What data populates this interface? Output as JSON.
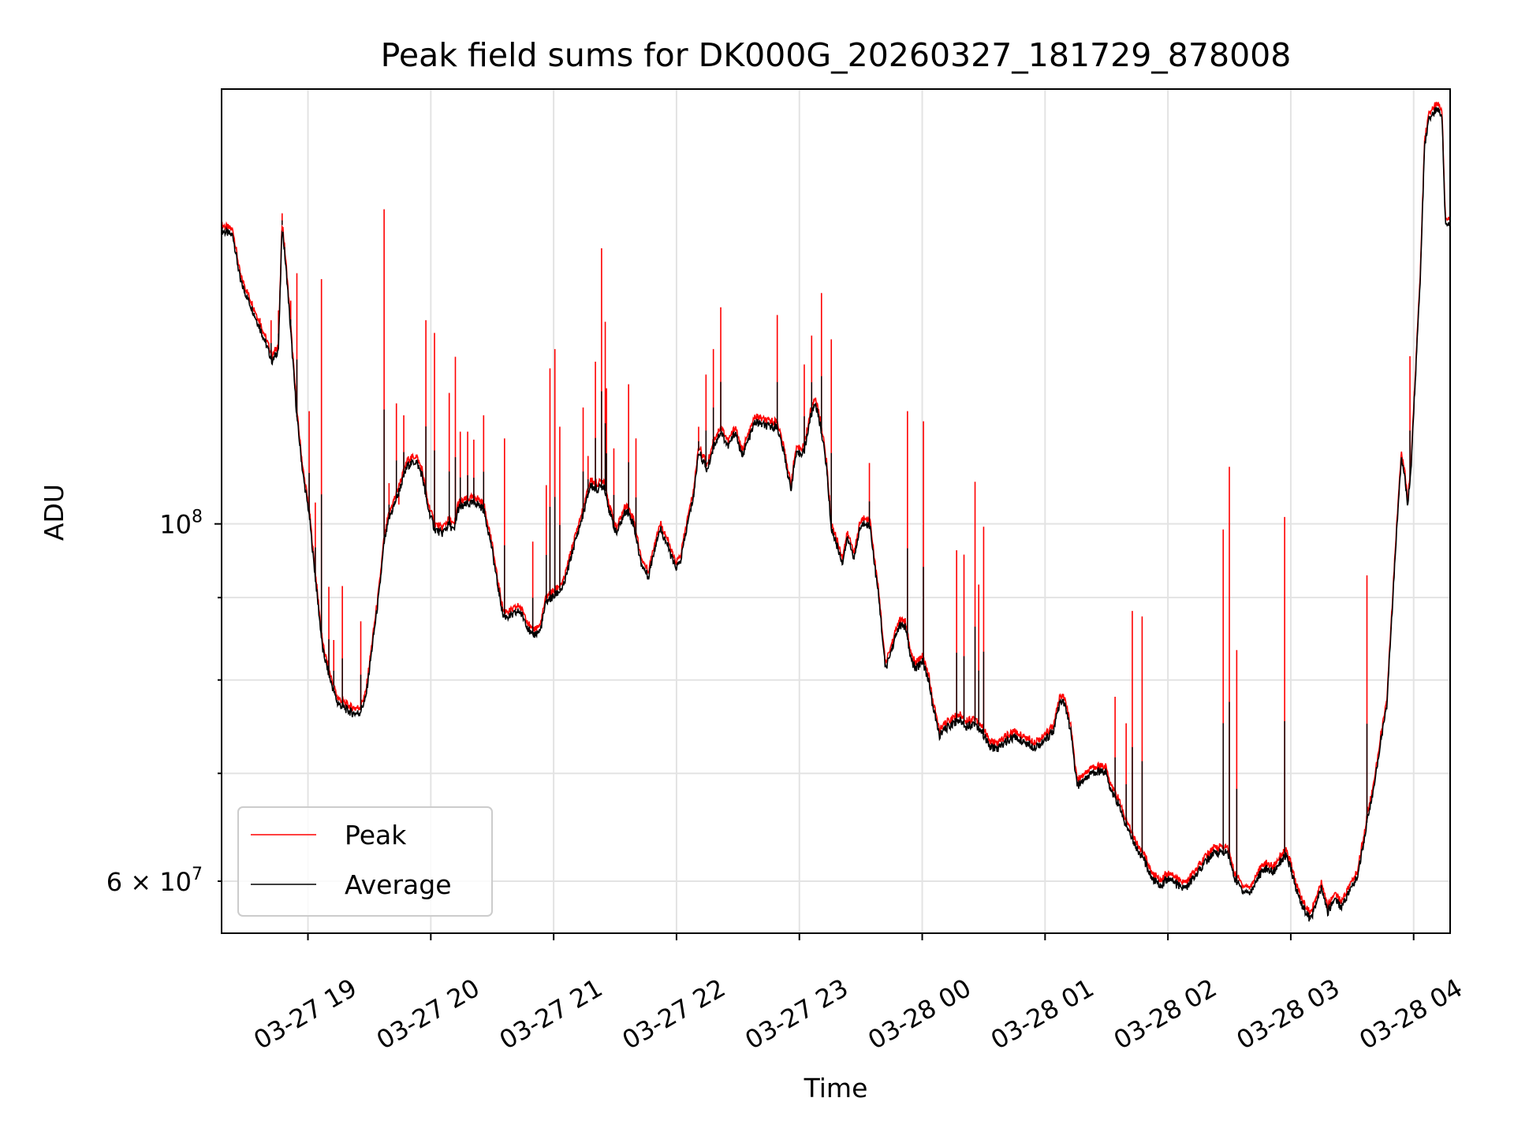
{
  "chart_data": {
    "type": "line",
    "title": "Peak field sums for DK000G_20260327_181729_878008",
    "xlabel": "Time",
    "ylabel": "ADU",
    "x_units": "hours since 03-27 00:00",
    "y_units": "ADU (millions)",
    "xlim": [
      18.297,
      28.297
    ],
    "ylim": [
      55.7,
      186.2
    ],
    "yscale": "log",
    "grid": true,
    "legend_position": "lower-left",
    "x_ticks": [
      {
        "value": 19,
        "label": "03-27 19"
      },
      {
        "value": 20,
        "label": "03-27 20"
      },
      {
        "value": 21,
        "label": "03-27 21"
      },
      {
        "value": 22,
        "label": "03-27 22"
      },
      {
        "value": 23,
        "label": "03-27 23"
      },
      {
        "value": 24,
        "label": "03-28 00"
      },
      {
        "value": 25,
        "label": "03-28 01"
      },
      {
        "value": 26,
        "label": "03-28 02"
      },
      {
        "value": 27,
        "label": "03-28 03"
      },
      {
        "value": 28,
        "label": "03-28 04"
      }
    ],
    "y_ticks": [
      {
        "value": 100,
        "base": "10",
        "exp": "8"
      },
      {
        "value": 60,
        "base": "6 × 10",
        "exp": "7"
      }
    ],
    "y_minor_grid": [
      60,
      70,
      80,
      90
    ],
    "series": [
      {
        "name": "Peak",
        "color": "#ff0000",
        "spikes": [
          [
            18.61,
            134.2
          ],
          [
            18.7,
            133.8
          ],
          [
            18.76,
            135.7
          ],
          [
            18.79,
            155.9
          ],
          [
            18.86,
            137.6
          ],
          [
            18.91,
            143.1
          ],
          [
            19.01,
            117.5
          ],
          [
            19.06,
            103.1
          ],
          [
            19.11,
            141.9
          ],
          [
            19.17,
            91.4
          ],
          [
            19.21,
            84.7
          ],
          [
            19.28,
            91.5
          ],
          [
            19.43,
            87.0
          ],
          [
            19.62,
            156.8
          ],
          [
            19.66,
            106.0
          ],
          [
            19.72,
            118.8
          ],
          [
            19.74,
            102.8
          ],
          [
            19.78,
            116.8
          ],
          [
            19.96,
            133.8
          ],
          [
            20.03,
            131.4
          ],
          [
            20.15,
            120.6
          ],
          [
            20.2,
            127.0
          ],
          [
            20.24,
            114.1
          ],
          [
            20.3,
            114.1
          ],
          [
            20.35,
            112.8
          ],
          [
            20.43,
            116.8
          ],
          [
            20.6,
            113.0
          ],
          [
            20.83,
            97.5
          ],
          [
            20.94,
            105.7
          ],
          [
            20.97,
            124.9
          ],
          [
            21.01,
            128.4
          ],
          [
            21.05,
            114.9
          ],
          [
            21.24,
            118.1
          ],
          [
            21.28,
            110.2
          ],
          [
            21.34,
            126.1
          ],
          [
            21.39,
            148.3
          ],
          [
            21.42,
            133.5
          ],
          [
            21.43,
            121.4
          ],
          [
            21.49,
            111.4
          ],
          [
            21.61,
            122.1
          ],
          [
            21.67,
            113.0
          ],
          [
            22.18,
            114.9
          ],
          [
            22.24,
            123.8
          ],
          [
            22.3,
            128.4
          ],
          [
            22.36,
            136.3
          ],
          [
            22.82,
            134.8
          ],
          [
            23.04,
            125.6
          ],
          [
            23.1,
            130.9
          ],
          [
            23.18,
            139.1
          ],
          [
            23.26,
            130.2
          ],
          [
            23.57,
            109.1
          ],
          [
            23.88,
            117.5
          ],
          [
            24.01,
            115.8
          ],
          [
            24.28,
            96.3
          ],
          [
            24.34,
            95.7
          ],
          [
            24.43,
            106.2
          ],
          [
            24.46,
            91.7
          ],
          [
            24.5,
            99.6
          ],
          [
            25.57,
            78.1
          ],
          [
            25.66,
            75.2
          ],
          [
            25.71,
            88.3
          ],
          [
            25.79,
            87.6
          ],
          [
            26.45,
            99.2
          ],
          [
            26.5,
            108.5
          ],
          [
            26.56,
            83.5
          ],
          [
            26.95,
            101.0
          ],
          [
            27.62,
            92.9
          ],
          [
            27.97,
            127.1
          ]
        ]
      },
      {
        "name": "Average",
        "color": "#000000",
        "points": [
          [
            18.3,
            152.1
          ],
          [
            18.39,
            151.0
          ],
          [
            18.45,
            141.5
          ],
          [
            18.55,
            135.7
          ],
          [
            18.63,
            131.1
          ],
          [
            18.71,
            126.1
          ],
          [
            18.76,
            128.4
          ],
          [
            18.79,
            153.3
          ],
          [
            18.83,
            141.5
          ],
          [
            18.87,
            128.4
          ],
          [
            18.91,
            116.5
          ],
          [
            18.96,
            107.2
          ],
          [
            19.01,
            101.4
          ],
          [
            19.04,
            95.9
          ],
          [
            19.08,
            89.5
          ],
          [
            19.12,
            83.5
          ],
          [
            19.18,
            80.1
          ],
          [
            19.24,
            77.4
          ],
          [
            19.3,
            76.8
          ],
          [
            19.36,
            76.3
          ],
          [
            19.42,
            76.3
          ],
          [
            19.47,
            77.9
          ],
          [
            19.53,
            84.7
          ],
          [
            19.58,
            90.7
          ],
          [
            19.62,
            97.3
          ],
          [
            19.66,
            100.7
          ],
          [
            19.73,
            104.2
          ],
          [
            19.81,
            108.7
          ],
          [
            19.88,
            109.4
          ],
          [
            19.93,
            107.2
          ],
          [
            19.97,
            102.8
          ],
          [
            20.03,
            99.3
          ],
          [
            20.09,
            98.6
          ],
          [
            20.15,
            100.0
          ],
          [
            20.19,
            98.9
          ],
          [
            20.22,
            102.1
          ],
          [
            20.29,
            102.8
          ],
          [
            20.37,
            103.1
          ],
          [
            20.43,
            102.1
          ],
          [
            20.49,
            97.3
          ],
          [
            20.54,
            92.0
          ],
          [
            20.59,
            87.6
          ],
          [
            20.65,
            87.6
          ],
          [
            20.72,
            88.3
          ],
          [
            20.77,
            87.0
          ],
          [
            20.82,
            85.2
          ],
          [
            20.89,
            85.8
          ],
          [
            20.94,
            89.5
          ],
          [
            21.0,
            90.1
          ],
          [
            21.08,
            91.4
          ],
          [
            21.16,
            96.6
          ],
          [
            21.24,
            101.4
          ],
          [
            21.3,
            105.7
          ],
          [
            21.35,
            105.0
          ],
          [
            21.41,
            105.7
          ],
          [
            21.46,
            101.4
          ],
          [
            21.51,
            98.6
          ],
          [
            21.59,
            102.1
          ],
          [
            21.65,
            100.0
          ],
          [
            21.71,
            94.6
          ],
          [
            21.77,
            92.7
          ],
          [
            21.84,
            97.9
          ],
          [
            21.87,
            99.3
          ],
          [
            21.92,
            97.3
          ],
          [
            21.99,
            93.9
          ],
          [
            22.03,
            94.6
          ],
          [
            22.09,
            100.0
          ],
          [
            22.14,
            104.2
          ],
          [
            22.18,
            111.0
          ],
          [
            22.25,
            107.9
          ],
          [
            22.3,
            111.7
          ],
          [
            22.36,
            114.1
          ],
          [
            22.42,
            111.7
          ],
          [
            22.48,
            114.1
          ],
          [
            22.53,
            110.2
          ],
          [
            22.58,
            112.5
          ],
          [
            22.64,
            115.7
          ],
          [
            22.74,
            114.9
          ],
          [
            22.82,
            114.9
          ],
          [
            22.88,
            110.2
          ],
          [
            22.93,
            105.0
          ],
          [
            22.97,
            110.2
          ],
          [
            23.04,
            111.0
          ],
          [
            23.09,
            116.5
          ],
          [
            23.13,
            119.0
          ],
          [
            23.18,
            114.1
          ],
          [
            23.22,
            108.7
          ],
          [
            23.26,
            99.3
          ],
          [
            23.3,
            97.3
          ],
          [
            23.35,
            94.6
          ],
          [
            23.39,
            97.9
          ],
          [
            23.45,
            95.3
          ],
          [
            23.49,
            99.3
          ],
          [
            23.54,
            100.3
          ],
          [
            23.58,
            99.3
          ],
          [
            23.61,
            94.6
          ],
          [
            23.65,
            89.5
          ],
          [
            23.7,
            81.2
          ],
          [
            23.75,
            83.5
          ],
          [
            23.81,
            86.4
          ],
          [
            23.86,
            86.4
          ],
          [
            23.91,
            82.3
          ],
          [
            23.95,
            81.2
          ],
          [
            24.0,
            82.3
          ],
          [
            24.05,
            80.1
          ],
          [
            24.09,
            76.8
          ],
          [
            24.14,
            73.9
          ],
          [
            24.2,
            74.7
          ],
          [
            24.25,
            75.2
          ],
          [
            24.3,
            75.6
          ],
          [
            24.36,
            74.9
          ],
          [
            24.43,
            75.2
          ],
          [
            24.49,
            74.2
          ],
          [
            24.55,
            72.7
          ],
          [
            24.62,
            72.5
          ],
          [
            24.67,
            73.2
          ],
          [
            24.75,
            73.7
          ],
          [
            24.83,
            73.2
          ],
          [
            24.91,
            72.7
          ],
          [
            24.99,
            73.2
          ],
          [
            25.07,
            74.5
          ],
          [
            25.12,
            77.4
          ],
          [
            25.16,
            77.4
          ],
          [
            25.21,
            74.2
          ],
          [
            25.26,
            68.7
          ],
          [
            25.34,
            69.7
          ],
          [
            25.42,
            70.2
          ],
          [
            25.49,
            70.2
          ],
          [
            25.54,
            68.3
          ],
          [
            25.6,
            66.9
          ],
          [
            25.64,
            65.5
          ],
          [
            25.7,
            64.1
          ],
          [
            25.75,
            62.8
          ],
          [
            25.82,
            61.5
          ],
          [
            25.88,
            60.1
          ],
          [
            25.94,
            59.7
          ],
          [
            26.01,
            60.3
          ],
          [
            26.07,
            59.7
          ],
          [
            26.15,
            59.4
          ],
          [
            26.21,
            60.3
          ],
          [
            26.29,
            61.5
          ],
          [
            26.37,
            62.4
          ],
          [
            26.43,
            62.6
          ],
          [
            26.49,
            62.4
          ],
          [
            26.54,
            60.3
          ],
          [
            26.61,
            59.2
          ],
          [
            26.67,
            59.0
          ],
          [
            26.73,
            60.3
          ],
          [
            26.79,
            61.1
          ],
          [
            26.86,
            60.8
          ],
          [
            26.91,
            61.7
          ],
          [
            26.96,
            62.2
          ],
          [
            27.0,
            61.1
          ],
          [
            27.04,
            59.4
          ],
          [
            27.1,
            57.8
          ],
          [
            27.16,
            56.8
          ],
          [
            27.21,
            58.2
          ],
          [
            27.25,
            59.4
          ],
          [
            27.3,
            57.4
          ],
          [
            27.36,
            58.6
          ],
          [
            27.41,
            57.8
          ],
          [
            27.48,
            59.2
          ],
          [
            27.54,
            60.3
          ],
          [
            27.59,
            63.3
          ],
          [
            27.63,
            65.9
          ],
          [
            27.68,
            68.7
          ],
          [
            27.73,
            73.2
          ],
          [
            27.78,
            76.8
          ],
          [
            27.82,
            87.0
          ],
          [
            27.87,
            101.4
          ],
          [
            27.9,
            110.2
          ],
          [
            27.93,
            107.2
          ],
          [
            27.95,
            102.1
          ],
          [
            27.98,
            108.7
          ],
          [
            28.01,
            121.4
          ],
          [
            28.05,
            139.5
          ],
          [
            28.09,
            171.8
          ],
          [
            28.12,
            177.9
          ],
          [
            28.15,
            179.6
          ],
          [
            28.2,
            181.1
          ],
          [
            28.23,
            179.6
          ],
          [
            28.26,
            152.7
          ],
          [
            28.3,
            154.2
          ]
        ]
      }
    ]
  }
}
